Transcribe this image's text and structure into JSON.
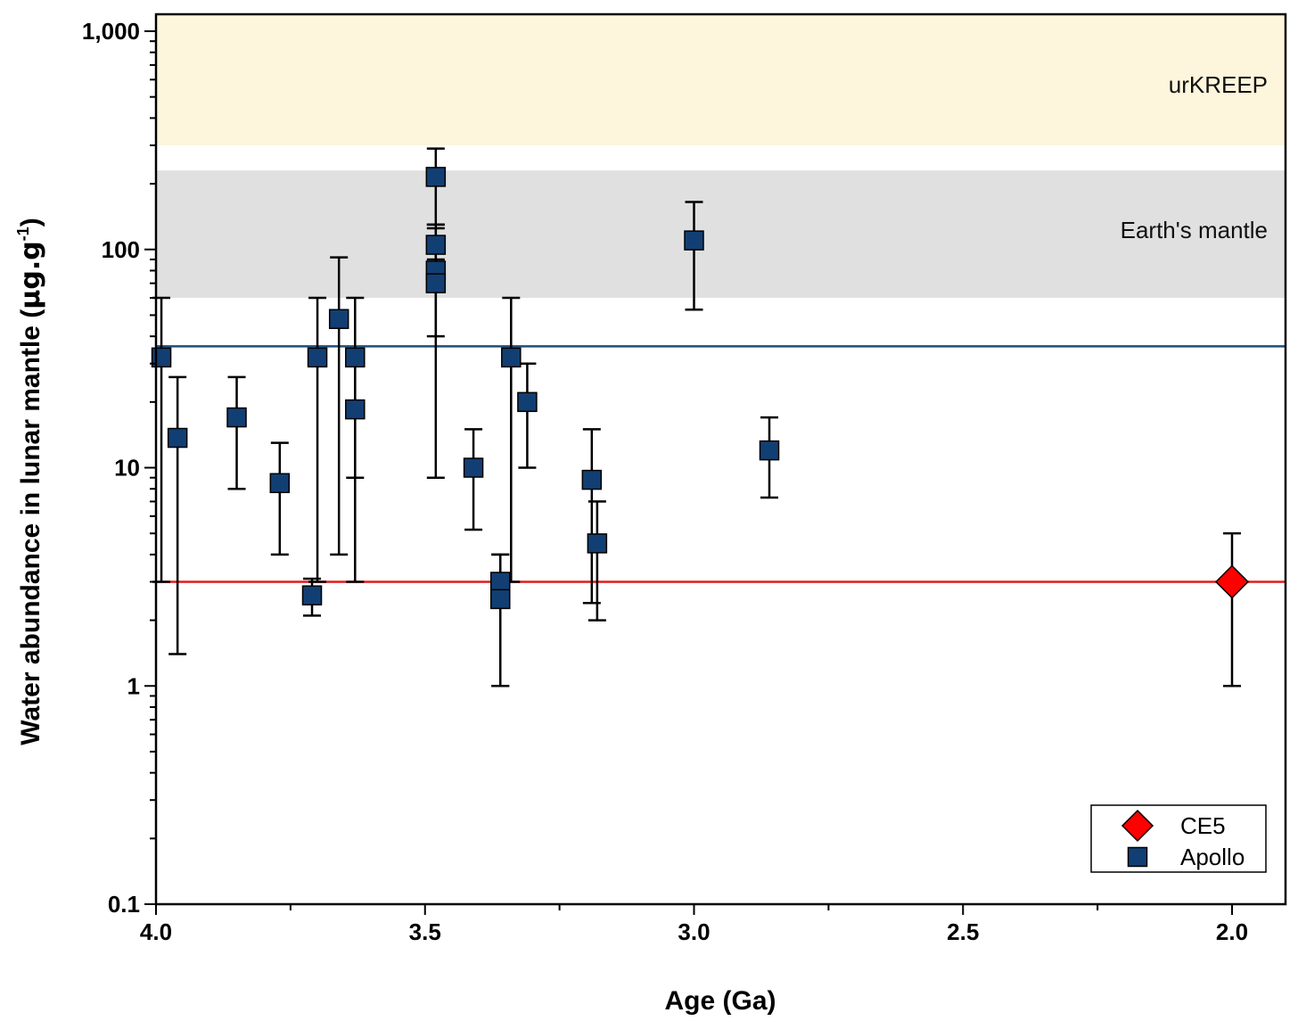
{
  "chart_data": {
    "type": "scatter",
    "xlabel": "Age (Ga)",
    "ylabel": "Water abundance in lunar mantle (μg.g⁻¹)",
    "ylabel_parts": {
      "main": "Water abundance in lunar mantle (",
      "unit": "μg.g",
      "sup": "-1",
      "close": ")"
    },
    "xlim": [
      4.0,
      1.9
    ],
    "x_reversed": true,
    "ylim": [
      0.1,
      1000
    ],
    "y_scale": "log",
    "x_ticks": [
      4.0,
      3.5,
      3.0,
      2.5,
      2.0
    ],
    "x_tick_labels": [
      "4.0",
      "3.5",
      "3.0",
      "2.5",
      "2.0"
    ],
    "y_ticks": [
      0.1,
      1,
      10,
      100,
      1000
    ],
    "y_tick_labels": [
      "0.1",
      "1",
      "10",
      "100",
      "1,000"
    ],
    "bands": [
      {
        "label": "urKREEP",
        "y_range": [
          300,
          1000
        ],
        "color": "#fdf5dc"
      },
      {
        "label": "Earth's mantle",
        "y_range": [
          60,
          230
        ],
        "color": "#e0e0e0"
      }
    ],
    "reference_lines": [
      {
        "y": 36,
        "color": "#1f4e79"
      },
      {
        "y": 3,
        "color": "#e41a1c"
      }
    ],
    "series": [
      {
        "name": "CE5",
        "marker": "diamond",
        "color": "#ff0000",
        "points": [
          {
            "x": 2.0,
            "y": 3.0,
            "err_low": 1.0,
            "err_high": 5.0
          }
        ]
      },
      {
        "name": "Apollo",
        "marker": "square",
        "color": "#123f73",
        "points": [
          {
            "x": 3.99,
            "y": 32,
            "err_low": 3.0,
            "err_high": 60
          },
          {
            "x": 3.96,
            "y": 13.7,
            "err_low": 1.4,
            "err_high": 26
          },
          {
            "x": 3.85,
            "y": 17,
            "err_low": 8.0,
            "err_high": 26
          },
          {
            "x": 3.77,
            "y": 8.5,
            "err_low": 4.0,
            "err_high": 13
          },
          {
            "x": 3.71,
            "y": 2.6,
            "err_low": 2.1,
            "err_high": 3.1
          },
          {
            "x": 3.7,
            "y": 32,
            "err_low": 3.0,
            "err_high": 60
          },
          {
            "x": 3.66,
            "y": 48,
            "err_low": 4.0,
            "err_high": 92
          },
          {
            "x": 3.63,
            "y": 32,
            "err_low": 9.0,
            "err_high": 60
          },
          {
            "x": 3.63,
            "y": 18.5,
            "err_low": 3.0,
            "err_high": 30
          },
          {
            "x": 3.48,
            "y": 215,
            "err_low": 130,
            "err_high": 290
          },
          {
            "x": 3.48,
            "y": 105,
            "err_low": 70,
            "err_high": 130
          },
          {
            "x": 3.48,
            "y": 80,
            "err_low": 9.0,
            "err_high": 125
          },
          {
            "x": 3.48,
            "y": 70,
            "err_low": 40,
            "err_high": 90
          },
          {
            "x": 3.41,
            "y": 10,
            "err_low": 5.2,
            "err_high": 15
          },
          {
            "x": 3.36,
            "y": 3.0,
            "err_low": 1.0,
            "err_high": 4.0
          },
          {
            "x": 3.36,
            "y": 2.5,
            "err_low": 1.0,
            "err_high": 4.0
          },
          {
            "x": 3.34,
            "y": 32,
            "err_low": 3.0,
            "err_high": 60
          },
          {
            "x": 3.31,
            "y": 20,
            "err_low": 10,
            "err_high": 30
          },
          {
            "x": 3.19,
            "y": 8.8,
            "err_low": 2.4,
            "err_high": 15
          },
          {
            "x": 3.18,
            "y": 4.5,
            "err_low": 2.0,
            "err_high": 7.0
          },
          {
            "x": 3.0,
            "y": 110,
            "err_low": 53,
            "err_high": 165
          },
          {
            "x": 2.86,
            "y": 12,
            "err_low": 7.3,
            "err_high": 17
          }
        ]
      }
    ],
    "legend": {
      "position": "bottom-right",
      "entries": [
        "CE5",
        "Apollo"
      ]
    }
  }
}
